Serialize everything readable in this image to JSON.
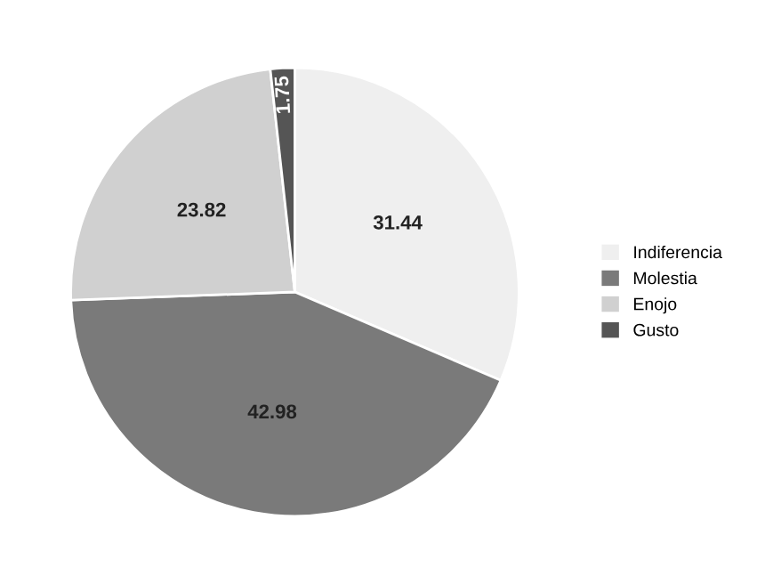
{
  "chart_data": {
    "type": "pie",
    "categories": [
      "Indiferencia",
      "Molestia",
      "Enojo",
      "Gusto"
    ],
    "values": [
      31.44,
      42.98,
      23.82,
      1.75
    ],
    "colors": [
      "#efefef",
      "#7a7a7a",
      "#d0d0d0",
      "#555555"
    ],
    "data_labels": true,
    "legend": "right"
  }
}
